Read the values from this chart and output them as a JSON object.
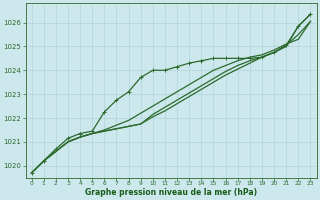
{
  "bg_color": "#cce8ec",
  "grid_color": "#b0d4d8",
  "line_color": "#2d6a2d",
  "xlabel": "Graphe pression niveau de la mer (hPa)",
  "xlabel_color": "#1a5c1a",
  "ylabel_ticks": [
    1020,
    1021,
    1022,
    1023,
    1024,
    1025,
    1026
  ],
  "xlim": [
    -0.5,
    23.5
  ],
  "ylim": [
    1019.5,
    1026.8
  ],
  "x_ticks": [
    0,
    1,
    2,
    3,
    4,
    5,
    6,
    7,
    8,
    9,
    10,
    11,
    12,
    13,
    14,
    15,
    16,
    17,
    18,
    19,
    20,
    21,
    22,
    23
  ],
  "series": [
    [
      1019.7,
      1020.2,
      1020.6,
      1021.0,
      1021.2,
      1021.35,
      1021.45,
      1021.55,
      1021.65,
      1021.75,
      1022.15,
      1022.45,
      1022.75,
      1023.05,
      1023.35,
      1023.65,
      1023.95,
      1024.2,
      1024.4,
      1024.55,
      1024.75,
      1025.0,
      1025.85,
      1026.35
    ],
    [
      1019.7,
      1020.2,
      1020.7,
      1021.15,
      1021.35,
      1021.45,
      1022.25,
      1022.75,
      1023.1,
      1023.7,
      1024.0,
      1024.0,
      1024.15,
      1024.3,
      1024.4,
      1024.5,
      1024.5,
      1024.5,
      1024.5,
      1024.55,
      1024.75,
      1025.05,
      1025.85,
      1026.35
    ],
    [
      1019.7,
      1020.2,
      1020.6,
      1021.0,
      1021.2,
      1021.35,
      1021.45,
      1021.55,
      1021.65,
      1021.75,
      1022.05,
      1022.3,
      1022.6,
      1022.9,
      1023.2,
      1023.5,
      1023.8,
      1024.05,
      1024.3,
      1024.55,
      1024.75,
      1025.05,
      1025.5,
      1026.05
    ],
    [
      1019.7,
      1020.2,
      1020.6,
      1021.0,
      1021.2,
      1021.35,
      1021.5,
      1021.7,
      1021.9,
      1022.2,
      1022.5,
      1022.8,
      1023.1,
      1023.4,
      1023.7,
      1024.0,
      1024.2,
      1024.4,
      1024.55,
      1024.65,
      1024.85,
      1025.1,
      1025.3,
      1026.05
    ]
  ],
  "marker_series": 1,
  "marker": "+",
  "marker_size": 3.5,
  "linewidth": 0.9
}
